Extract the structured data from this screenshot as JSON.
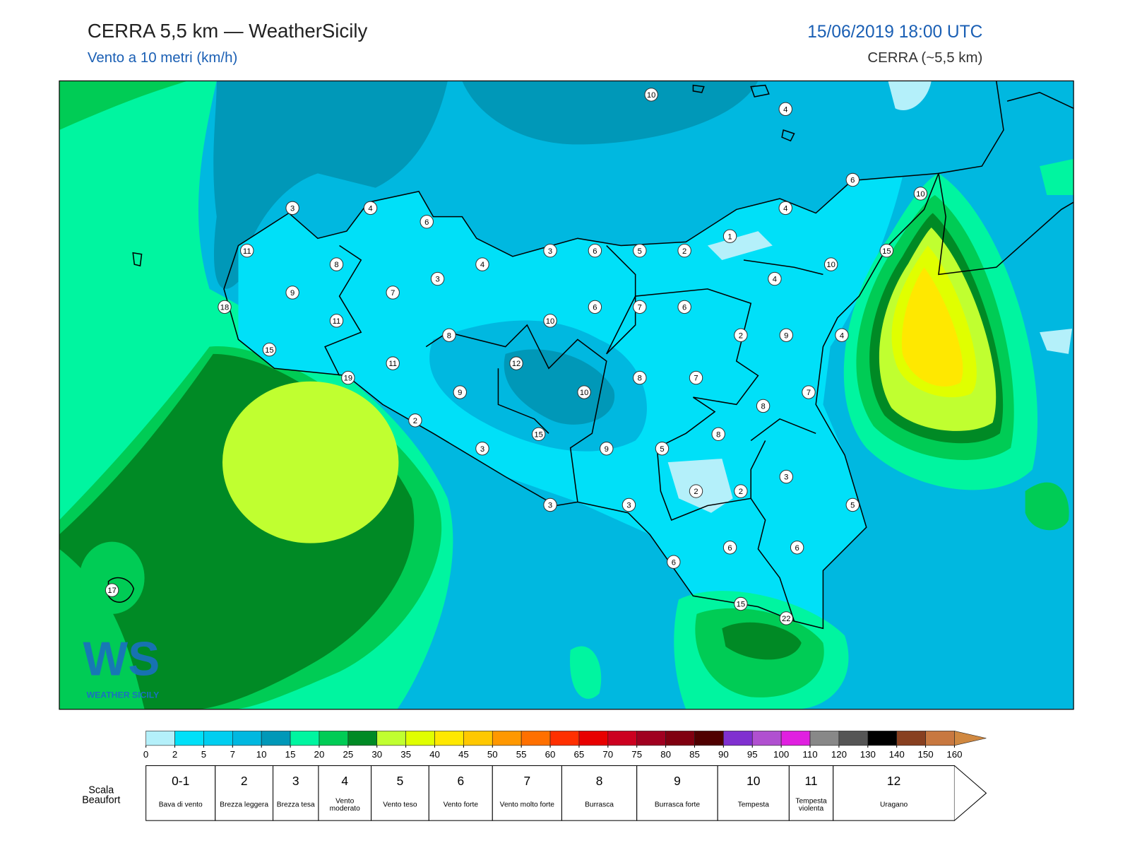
{
  "header": {
    "title": "CERRA 5,5 km — WeatherSicily",
    "subtitle": "Vento a 10 metri (km/h)",
    "datetime": "15/06/2019 18:00 UTC",
    "model": "CERRA (~5,5 km)"
  },
  "logo": {
    "mark": "WS",
    "text": "WEATHER SICILY"
  },
  "wind_labels": [
    10,
    4,
    6,
    10,
    3,
    4,
    6,
    4,
    1,
    11,
    3,
    6,
    5,
    2,
    15,
    8,
    4,
    10,
    3,
    4,
    9,
    7,
    18,
    6,
    7,
    6,
    11,
    10,
    8,
    2,
    9,
    4,
    15,
    11,
    12,
    19,
    8,
    7,
    9,
    10,
    7,
    8,
    2,
    8,
    15,
    3,
    9,
    5,
    3,
    2,
    2,
    3,
    3,
    5,
    6,
    6,
    6,
    17,
    15,
    22
  ],
  "colorbar": {
    "ticks": [
      0,
      2,
      5,
      7,
      10,
      15,
      20,
      25,
      30,
      35,
      40,
      45,
      50,
      55,
      60,
      65,
      70,
      75,
      80,
      85,
      90,
      95,
      100,
      110,
      120,
      130,
      140,
      150,
      160
    ],
    "colors": [
      "#b4f0fa",
      "#00e0f8",
      "#00cef0",
      "#00b8e0",
      "#0098b8",
      "#00f5a0",
      "#00cc55",
      "#008a25",
      "#c0ff30",
      "#e0ff00",
      "#ffe800",
      "#ffc800",
      "#ff9800",
      "#ff7000",
      "#ff3000",
      "#e80000",
      "#cc0020",
      "#a00020",
      "#800010",
      "#500000",
      "#8030d0",
      "#b050d0",
      "#e020e0",
      "#888888",
      "#555555",
      "#000000",
      "#884020",
      "#c87840",
      "#d08840"
    ]
  },
  "beaufort": {
    "title": "Scala Beaufort",
    "levels": [
      {
        "force": "0-1",
        "label": "Bava di vento"
      },
      {
        "force": 2,
        "label": "Brezza leggera"
      },
      {
        "force": 3,
        "label": "Brezza tesa"
      },
      {
        "force": 4,
        "label": "Vento moderato"
      },
      {
        "force": 5,
        "label": "Vento teso"
      },
      {
        "force": 6,
        "label": "Vento forte"
      },
      {
        "force": 7,
        "label": "Vento molto forte"
      },
      {
        "force": 8,
        "label": "Burrasca"
      },
      {
        "force": 9,
        "label": "Burrasca forte"
      },
      {
        "force": 10,
        "label": "Tempesta"
      },
      {
        "force": 11,
        "label": "Tempesta violenta"
      },
      {
        "force": 12,
        "label": "Uragano"
      }
    ]
  }
}
